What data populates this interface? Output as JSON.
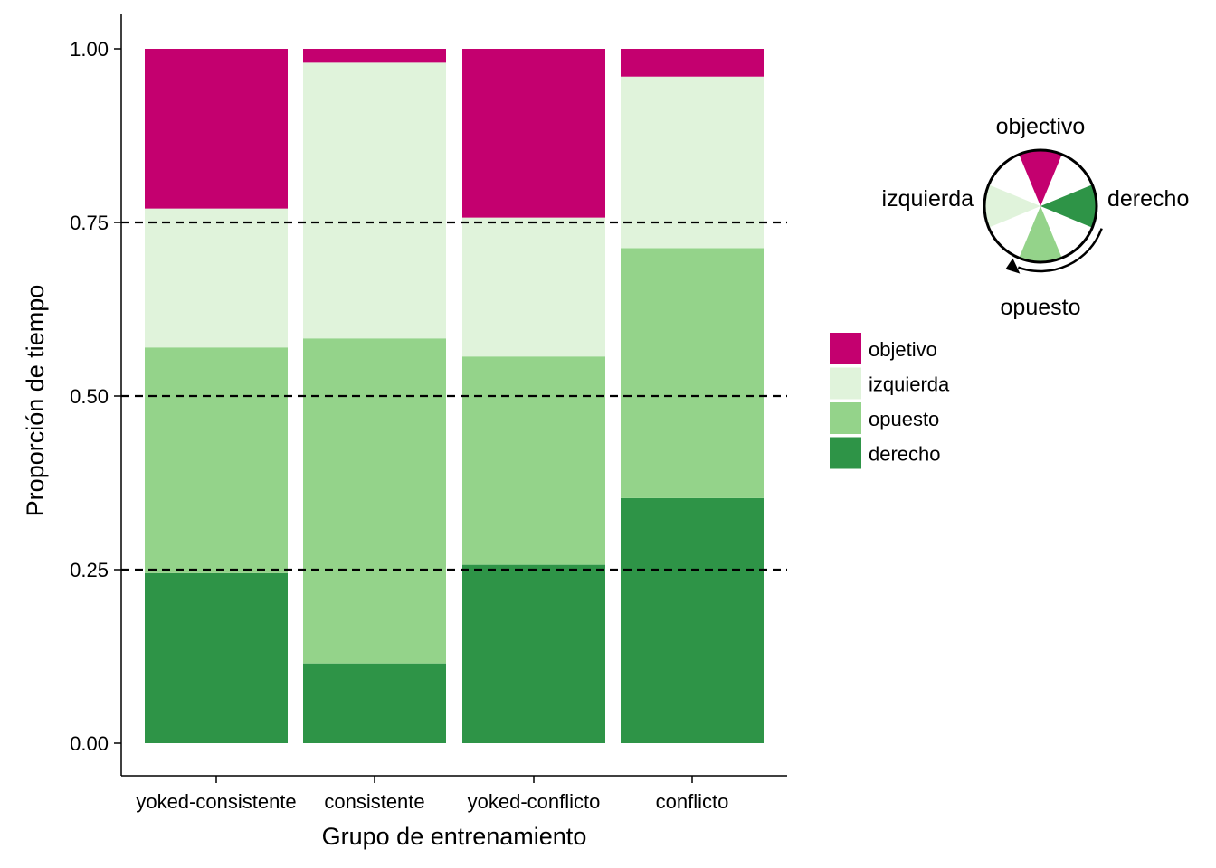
{
  "chart_data": {
    "type": "bar",
    "stacked": true,
    "xlabel": "Grupo de entrenamiento",
    "ylabel": "Proporción de tiempo",
    "ylim": [
      0,
      1
    ],
    "yticks": [
      "0.00",
      "0.25",
      "0.50",
      "0.75",
      "1.00"
    ],
    "reference_lines": [
      0.25,
      0.5,
      0.75
    ],
    "grid": false,
    "categories": [
      "yoked-consistente",
      "consistente",
      "yoked-conflicto",
      "conflicto"
    ],
    "series": [
      {
        "name": "derecho",
        "color": "#2e9447",
        "values": [
          0.245,
          0.115,
          0.257,
          0.353
        ]
      },
      {
        "name": "opuesto",
        "color": "#94d38a",
        "values": [
          0.325,
          0.468,
          0.3,
          0.36
        ]
      },
      {
        "name": "izquierda",
        "color": "#e0f3db",
        "values": [
          0.2,
          0.397,
          0.2,
          0.247
        ]
      },
      {
        "name": "objetivo",
        "color": "#c4006f",
        "values": [
          0.23,
          0.02,
          0.243,
          0.04
        ]
      }
    ],
    "legend": {
      "placement": "right",
      "entries": [
        "objetivo",
        "izquierda",
        "opuesto",
        "derecho"
      ]
    },
    "orientation_dial": {
      "top": "objectivo",
      "left": "izquierda",
      "right": "derecho",
      "bottom": "opuesto"
    }
  }
}
